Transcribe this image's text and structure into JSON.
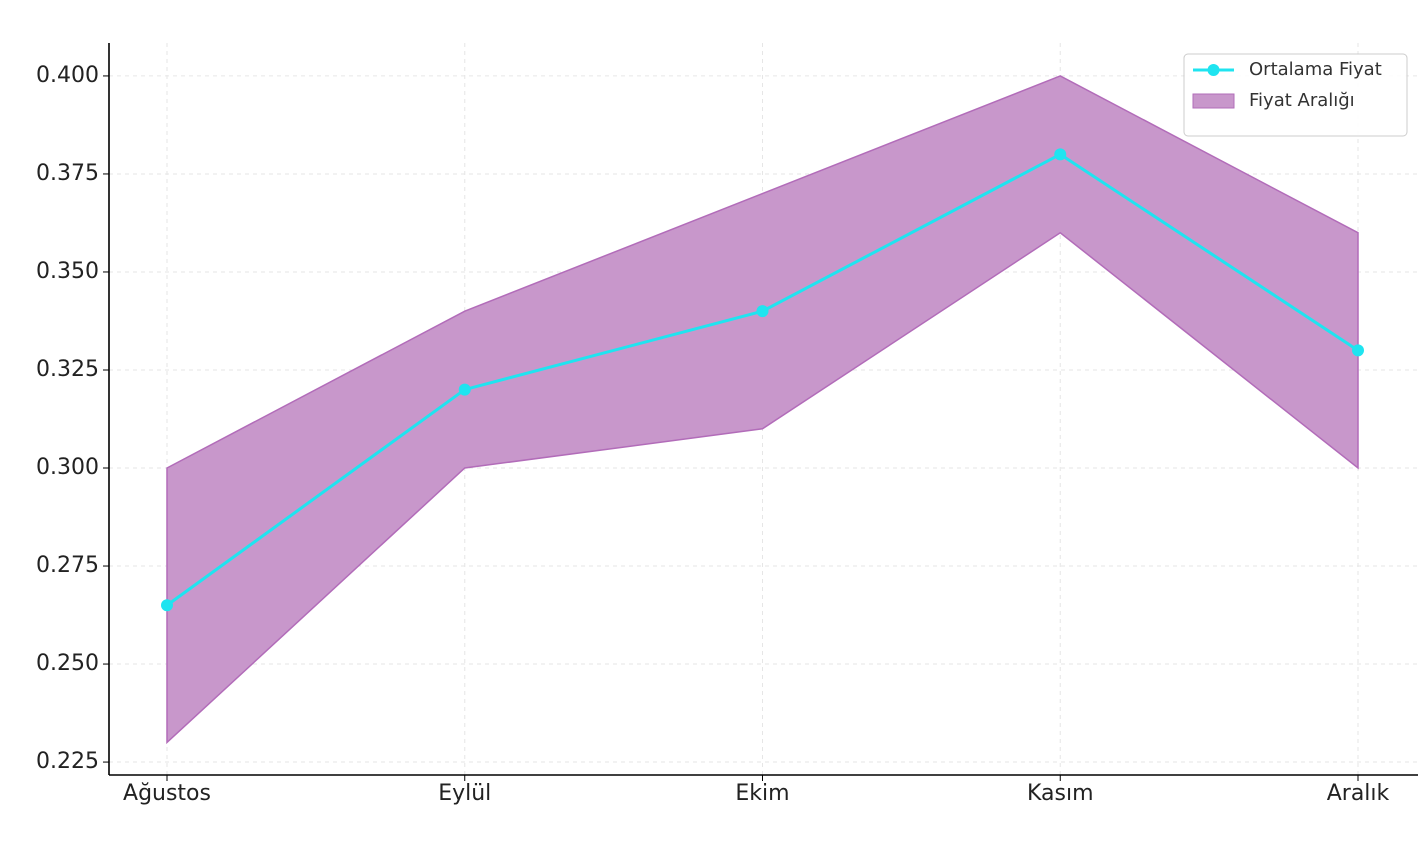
{
  "chart_data": {
    "type": "line",
    "categories": [
      "Ağustos",
      "Eylül",
      "Ekim",
      "Kasım",
      "Aralık"
    ],
    "series": [
      {
        "name": "Ortalama Fiyat",
        "color": "#1fe4f0",
        "values": [
          0.265,
          0.32,
          0.34,
          0.38,
          0.33
        ]
      },
      {
        "name": "Fiyat Aralığı",
        "type": "range",
        "color": "#c897cb",
        "edge_color": "#b26cb9",
        "lower": [
          0.23,
          0.3,
          0.31,
          0.36,
          0.3
        ],
        "upper": [
          0.3,
          0.34,
          0.37,
          0.4,
          0.36
        ]
      }
    ],
    "ylim": [
      0.2217,
      0.4084
    ],
    "yticks": [
      {
        "value": 0.225,
        "label": "0.225"
      },
      {
        "value": 0.25,
        "label": "0.250"
      },
      {
        "value": 0.275,
        "label": "0.275"
      },
      {
        "value": 0.3,
        "label": "0.300"
      },
      {
        "value": 0.325,
        "label": "0.325"
      },
      {
        "value": 0.35,
        "label": "0.350"
      },
      {
        "value": 0.375,
        "label": "0.375"
      },
      {
        "value": 0.4,
        "label": "0.400"
      }
    ],
    "grid": true,
    "legend": "upper right"
  }
}
